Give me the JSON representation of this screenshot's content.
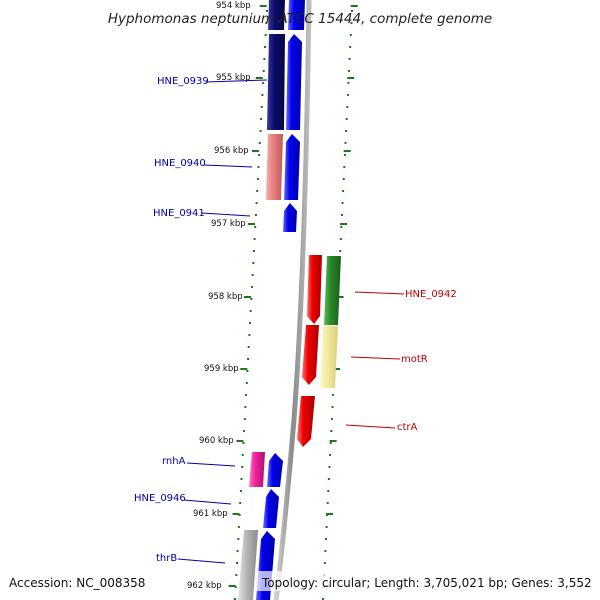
{
  "title": "Hyphomonas neptunium ATCC 15444, complete genome",
  "footer": {
    "accession": "Accession: NC_008358",
    "summary": "Topology: circular; Length: 3,705,021 bp; Genes: 3,552"
  },
  "ticks": [
    "954 kbp",
    "955 kbp",
    "956 kbp",
    "957 kbp",
    "958 kbp",
    "959 kbp",
    "960 kbp",
    "961 kbp",
    "962 kbp"
  ],
  "gene_labels": {
    "hne0939": "HNE_0939",
    "hne0940": "HNE_0940",
    "hne0941": "HNE_0941",
    "hne0942": "HNE_0942",
    "motR": "motR",
    "ctrA": "ctrA",
    "rnhA": "rnhA",
    "hne0946": "HNE_0946",
    "thrB": "thrB"
  },
  "colors": {
    "forward_cds": "#0000ee",
    "reverse_cds": "#ee0000",
    "navy": "#0b0b6e",
    "salmon": "#e88080",
    "green": "#2a8a2a",
    "pale_yellow": "#f2eca0",
    "magenta": "#ee2299",
    "gray": "#b8b8b8",
    "forward_label": "#0000aa",
    "reverse_label": "#bb0000",
    "tick_green": "#1a7a1a"
  }
}
